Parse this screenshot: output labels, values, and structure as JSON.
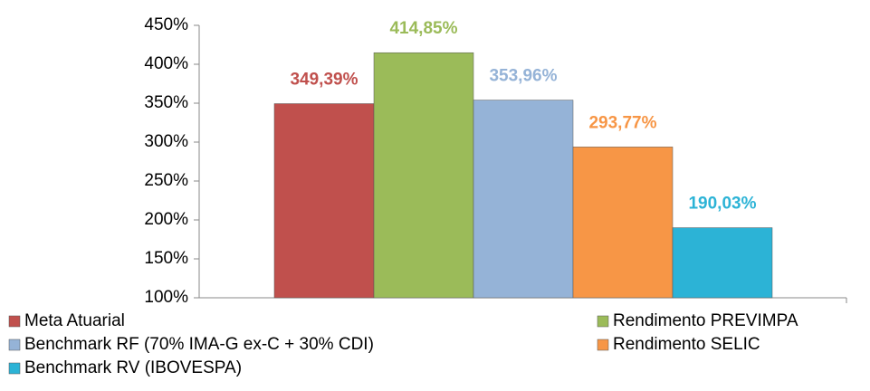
{
  "chart_data": {
    "type": "bar",
    "categories": [
      null
    ],
    "series": [
      {
        "name": "Meta Atuarial",
        "color": "#c0504d",
        "values": [
          349.39
        ],
        "value_labels": [
          "349,39%"
        ]
      },
      {
        "name": "Rendimento PREVIMPA",
        "color": "#9bbb59",
        "values": [
          414.85
        ],
        "value_labels": [
          "414,85%"
        ]
      },
      {
        "name": "Benchmark RF (70% IMA-G ex-C + 30% CDI)",
        "color": "#95b3d7",
        "values": [
          353.96
        ],
        "value_labels": [
          "353,96%"
        ]
      },
      {
        "name": "Rendimento SELIC",
        "color": "#f79646",
        "values": [
          293.77
        ],
        "value_labels": [
          "293,77%"
        ]
      },
      {
        "name": "Benchmark RV (IBOVESPA)",
        "color": "#2cb3d6",
        "values": [
          190.03
        ],
        "value_labels": [
          "190,03%"
        ]
      }
    ],
    "ylim": [
      100,
      450
    ],
    "yticks": [
      {
        "value": 100,
        "label": "100%"
      },
      {
        "value": 150,
        "label": "150%"
      },
      {
        "value": 200,
        "label": "200%"
      },
      {
        "value": 250,
        "label": "250%"
      },
      {
        "value": 300,
        "label": "300%"
      },
      {
        "value": 350,
        "label": "350%"
      },
      {
        "value": 400,
        "label": "400%"
      },
      {
        "value": 450,
        "label": "450%"
      }
    ],
    "legend": "bottom"
  }
}
